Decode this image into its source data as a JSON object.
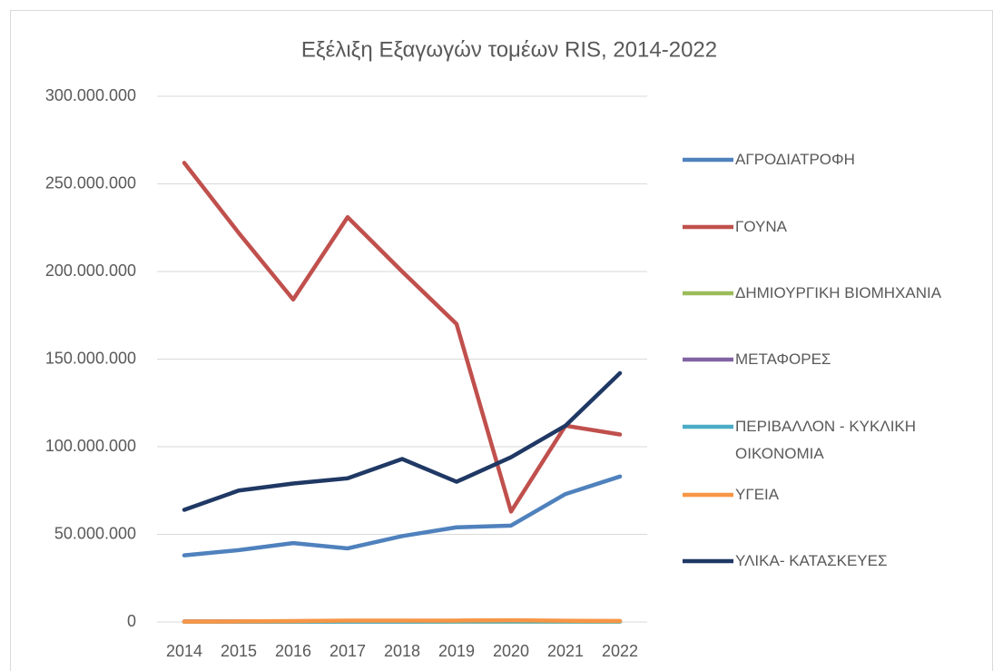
{
  "chart_data": {
    "type": "line",
    "title": "Εξέλιξη Εξαγωγών τομέων RIS, 2014-2022",
    "categories": [
      "2014",
      "2015",
      "2016",
      "2017",
      "2018",
      "2019",
      "2020",
      "2021",
      "2022"
    ],
    "series": [
      {
        "name": "ΑΓΡΟΔΙΑΤΡΟΦΗ",
        "color": "#4f81bd",
        "values": [
          38000000,
          41000000,
          45000000,
          42000000,
          49000000,
          54000000,
          55000000,
          73000000,
          83000000
        ]
      },
      {
        "name": "ΓΟΥΝΑ",
        "color": "#c0504d",
        "values": [
          262000000,
          222000000,
          184000000,
          231000000,
          200000000,
          170000000,
          63000000,
          112000000,
          107000000
        ]
      },
      {
        "name": "ΔΗΜΙΟΥΡΓΙΚΗ ΒΙΟΜΗΧΑΝΙΑ",
        "color": "#9bbb59",
        "values": [
          100000,
          100000,
          100000,
          200000,
          200000,
          200000,
          200000,
          200000,
          200000
        ]
      },
      {
        "name": "ΜΕΤΑΦΟΡΕΣ",
        "color": "#8064a2",
        "values": [
          300000,
          300000,
          400000,
          500000,
          500000,
          500000,
          600000,
          400000,
          400000
        ]
      },
      {
        "name": "ΠΕΡΙΒΑΛΛΟΝ - ΚΥΚΛΙΚΗ ΟΙΚΟΝΟΜΙΑ",
        "color": "#4bacc6",
        "values": [
          100000,
          100000,
          200000,
          200000,
          200000,
          300000,
          300000,
          300000,
          300000
        ]
      },
      {
        "name": "ΥΓΕΙΑ",
        "color": "#f79646",
        "values": [
          200000,
          300000,
          500000,
          800000,
          800000,
          800000,
          1000000,
          700000,
          600000
        ]
      },
      {
        "name": "ΥΛΙΚΑ- ΚΑΤΑΣΚΕΥΕΣ",
        "color": "#1f3864",
        "values": [
          64000000,
          75000000,
          79000000,
          82000000,
          93000000,
          80000000,
          94000000,
          112000000,
          142000000
        ]
      }
    ],
    "ylim": [
      0,
      300000000
    ],
    "yticks": [
      0,
      {
        "value": 50000000,
        "label": "50.000.000"
      },
      {
        "value": 100000000,
        "label": "100.000.000"
      },
      {
        "value": 150000000,
        "label": "150.000.000"
      },
      {
        "value": 200000000,
        "label": "200.000.000"
      },
      {
        "value": 250000000,
        "label": "250.000.000"
      },
      {
        "value": 300000000,
        "label": "300.000.000"
      }
    ],
    "grid": true,
    "legend": "right"
  }
}
